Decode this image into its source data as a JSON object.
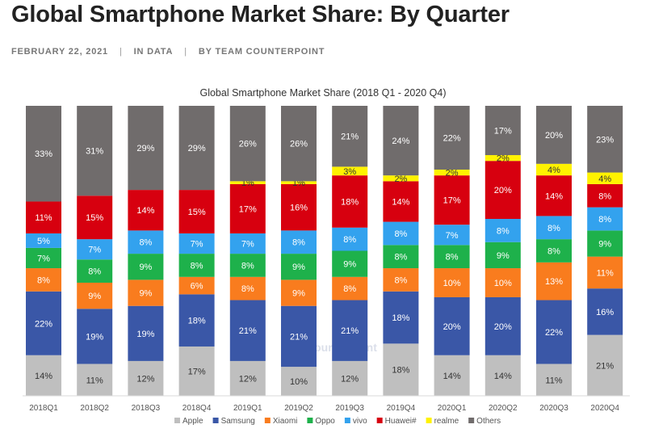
{
  "article": {
    "title": "Global Smartphone Market Share: By Quarter",
    "date": "FEBRUARY 22, 2021",
    "category": "IN DATA",
    "author": "BY TEAM COUNTERPOINT",
    "separator": "|"
  },
  "watermark": "Counterpoint",
  "chart_data": {
    "type": "bar",
    "stacked": true,
    "title": "Global Smartphone Market Share (2018 Q1 - 2020 Q4)",
    "xlabel": "",
    "ylabel": "",
    "ylim": [
      0,
      100
    ],
    "legend_position": "bottom",
    "categories": [
      "2018Q1",
      "2018Q2",
      "2018Q3",
      "2018Q4",
      "2019Q1",
      "2019Q2",
      "2019Q3",
      "2019Q4",
      "2020Q1",
      "2020Q2",
      "2020Q3",
      "2020Q4"
    ],
    "series": [
      {
        "name": "Apple",
        "color": "#bfbfbf",
        "label_color": "#333333",
        "values": [
          14,
          11,
          12,
          17,
          12,
          10,
          12,
          18,
          14,
          14,
          11,
          21
        ]
      },
      {
        "name": "Samsung",
        "color": "#3a57a7",
        "label_color": "#ffffff",
        "values": [
          22,
          19,
          19,
          18,
          21,
          21,
          21,
          18,
          20,
          20,
          22,
          16
        ]
      },
      {
        "name": "Xiaomi",
        "color": "#f97c1e",
        "label_color": "#ffffff",
        "values": [
          8,
          9,
          9,
          6,
          8,
          9,
          8,
          8,
          10,
          10,
          13,
          11
        ]
      },
      {
        "name": "Oppo",
        "color": "#1eb14b",
        "label_color": "#ffffff",
        "values": [
          7,
          8,
          9,
          8,
          8,
          9,
          9,
          8,
          8,
          9,
          8,
          9
        ]
      },
      {
        "name": "vivo",
        "color": "#33a2ee",
        "label_color": "#ffffff",
        "values": [
          5,
          7,
          8,
          7,
          7,
          8,
          8,
          8,
          7,
          8,
          8,
          8
        ]
      },
      {
        "name": "Huawei#",
        "color": "#d7000f",
        "label_color": "#ffffff",
        "values": [
          11,
          15,
          14,
          15,
          17,
          16,
          18,
          14,
          17,
          20,
          14,
          8
        ]
      },
      {
        "name": "realme",
        "color": "#fff200",
        "label_color": "#333333",
        "values": [
          0,
          0,
          0,
          0,
          1,
          1,
          3,
          2,
          2,
          2,
          4,
          4
        ]
      },
      {
        "name": "Others",
        "color": "#706c6c",
        "label_color": "#ffffff",
        "values": [
          33,
          31,
          29,
          29,
          26,
          26,
          21,
          24,
          22,
          17,
          20,
          23
        ]
      }
    ]
  }
}
